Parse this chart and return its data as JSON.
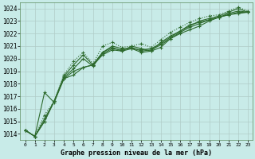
{
  "x": [
    0,
    1,
    2,
    3,
    4,
    5,
    6,
    7,
    8,
    9,
    10,
    11,
    12,
    13,
    14,
    15,
    16,
    17,
    18,
    19,
    20,
    21,
    22,
    23
  ],
  "series": [
    [
      1014.3,
      1013.8,
      1015.0,
      1016.6,
      1018.4,
      1018.7,
      1019.3,
      1019.5,
      1020.5,
      1020.9,
      1020.6,
      1021.0,
      1020.8,
      1020.6,
      1020.9,
      1021.6,
      1022.0,
      1022.3,
      1022.6,
      1023.0,
      1023.3,
      1023.5,
      1023.6,
      1023.7
    ],
    [
      1014.3,
      1013.8,
      1017.3,
      1016.5,
      1018.4,
      1019.0,
      1019.3,
      1019.5,
      1020.3,
      1020.7,
      1020.6,
      1020.8,
      1020.5,
      1020.6,
      1021.3,
      1021.8,
      1022.2,
      1022.7,
      1022.9,
      1023.1,
      1023.3,
      1023.5,
      1023.7,
      1023.7
    ],
    [
      1014.3,
      1013.8,
      1015.0,
      1016.6,
      1018.6,
      1019.5,
      1020.3,
      1019.5,
      1020.5,
      1021.0,
      1020.8,
      1020.8,
      1020.7,
      1020.8,
      1021.2,
      1021.7,
      1022.2,
      1022.6,
      1023.0,
      1023.2,
      1023.4,
      1023.7,
      1024.0,
      1023.7
    ],
    [
      1014.3,
      1013.8,
      1015.2,
      1016.6,
      1018.5,
      1019.2,
      1020.0,
      1019.4,
      1020.4,
      1020.8,
      1020.7,
      1020.9,
      1020.6,
      1020.7,
      1021.1,
      1021.6,
      1022.1,
      1022.5,
      1022.8,
      1023.1,
      1023.3,
      1023.6,
      1023.8,
      1023.7
    ]
  ],
  "dotted_series": [
    1014.3,
    1013.8,
    1015.5,
    1016.6,
    1018.7,
    1019.8,
    1020.5,
    1019.6,
    1021.0,
    1021.3,
    1020.9,
    1021.0,
    1021.2,
    1020.9,
    1021.5,
    1022.1,
    1022.5,
    1022.9,
    1023.2,
    1023.4,
    1023.5,
    1023.8,
    1024.1,
    1023.8
  ],
  "line_color": "#2d6a2d",
  "bg_color": "#c8ebe8",
  "grid_color": "#b0ccc8",
  "ylabel_ticks": [
    1014,
    1015,
    1016,
    1017,
    1018,
    1019,
    1020,
    1021,
    1022,
    1023,
    1024
  ],
  "xlabel": "Graphe pression niveau de la mer (hPa)",
  "ylim": [
    1013.5,
    1024.5
  ],
  "xlim": [
    -0.5,
    23.5
  ]
}
